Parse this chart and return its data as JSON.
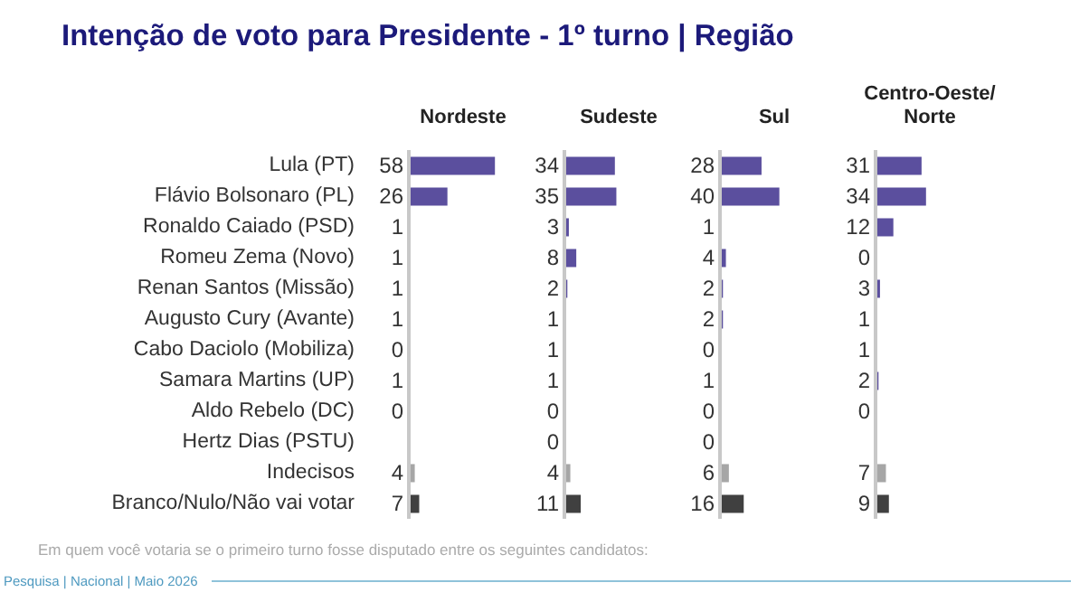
{
  "chart_data": [
    {
      "type": "bar",
      "orientation": "horizontal",
      "title": "Intenção de voto para Presidente - 1º turno | Região",
      "subtitle": "Nordeste",
      "annotations": [
        "Em quem você votaria se o primeiro turno fosse disputado entre os seguintes candidatos:",
        "Pesquisa | Nacional | Maio 2026"
      ],
      "categories": [
        "Lula (PT)",
        "Flávio Bolsonaro (PL)",
        "Ronaldo Caiado (PSD)",
        "Romeu Zema (Novo)",
        "Renan Santos (Missão)",
        "Augusto Cury (Avante)",
        "Cabo Daciolo (Mobiliza)",
        "Samara Martins (UP)",
        "Aldo Rebelo (DC)",
        "Hertz Dias (PSTU)",
        "Indecisos",
        "Branco/Nulo/Não vai votar"
      ],
      "values": [
        58,
        26,
        1,
        1,
        1,
        1,
        0,
        1,
        0,
        null,
        4,
        7
      ],
      "colors": [
        "#5b4f9e",
        "#5b4f9e",
        "#5b4f9e",
        "#5b4f9e",
        "#5b4f9e",
        "#5b4f9e",
        "#5b4f9e",
        "#5b4f9e",
        "#5b4f9e",
        "#5b4f9e",
        "#a6a6a6",
        "#404040"
      ],
      "data_labels": true,
      "tick_labels": "y"
    },
    {
      "type": "bar",
      "orientation": "horizontal",
      "title": "Sudeste",
      "categories": [
        null,
        null,
        null,
        null,
        null,
        null,
        null,
        null,
        null,
        null,
        null,
        null
      ],
      "values": [
        34,
        35,
        3,
        8,
        2,
        1,
        1,
        1,
        0,
        0,
        4,
        11
      ],
      "colors": [
        "#5b4f9e",
        "#5b4f9e",
        "#5b4f9e",
        "#5b4f9e",
        "#5b4f9e",
        "#5b4f9e",
        "#5b4f9e",
        "#5b4f9e",
        "#5b4f9e",
        "#5b4f9e",
        "#a6a6a6",
        "#404040"
      ],
      "data_labels": true,
      "tick_labels": false
    },
    {
      "type": "bar",
      "orientation": "horizontal",
      "title": "Sul",
      "categories": [
        null,
        null,
        null,
        null,
        null,
        null,
        null,
        null,
        null,
        null,
        null,
        null
      ],
      "values": [
        28,
        40,
        1,
        4,
        2,
        2,
        0,
        1,
        0,
        0,
        6,
        16
      ],
      "colors": [
        "#5b4f9e",
        "#5b4f9e",
        "#5b4f9e",
        "#5b4f9e",
        "#5b4f9e",
        "#5b4f9e",
        "#5b4f9e",
        "#5b4f9e",
        "#5b4f9e",
        "#5b4f9e",
        "#a6a6a6",
        "#404040"
      ],
      "data_labels": true,
      "tick_labels": false
    },
    {
      "type": "bar",
      "orientation": "horizontal",
      "title": "Centro-Oeste/ Norte",
      "categories": [
        null,
        null,
        null,
        null,
        null,
        null,
        null,
        null,
        null,
        null,
        null,
        null
      ],
      "values": [
        31,
        34,
        12,
        0,
        3,
        1,
        1,
        2,
        0,
        null,
        7,
        9
      ],
      "colors": [
        "#5b4f9e",
        "#5b4f9e",
        "#5b4f9e",
        "#5b4f9e",
        "#5b4f9e",
        "#5b4f9e",
        "#5b4f9e",
        "#5b4f9e",
        "#5b4f9e",
        "#5b4f9e",
        "#a6a6a6",
        "#404040"
      ],
      "data_labels": true,
      "tick_labels": false
    }
  ]
}
